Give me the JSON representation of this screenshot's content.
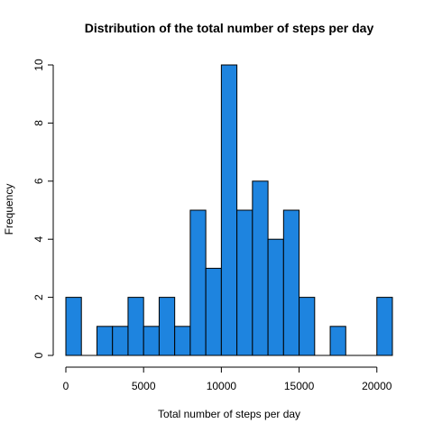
{
  "chart_data": {
    "type": "bar",
    "title": "Distribution of the total number of steps per day",
    "xlabel": "Total number of steps per day",
    "ylabel": "Frequency",
    "bin_width": 1000,
    "bins": [
      {
        "from": 0,
        "to": 1000,
        "count": 2
      },
      {
        "from": 1000,
        "to": 2000,
        "count": 0
      },
      {
        "from": 2000,
        "to": 3000,
        "count": 1
      },
      {
        "from": 3000,
        "to": 4000,
        "count": 1
      },
      {
        "from": 4000,
        "to": 5000,
        "count": 2
      },
      {
        "from": 5000,
        "to": 6000,
        "count": 1
      },
      {
        "from": 6000,
        "to": 7000,
        "count": 2
      },
      {
        "from": 7000,
        "to": 8000,
        "count": 1
      },
      {
        "from": 8000,
        "to": 9000,
        "count": 5
      },
      {
        "from": 9000,
        "to": 10000,
        "count": 3
      },
      {
        "from": 10000,
        "to": 11000,
        "count": 10
      },
      {
        "from": 11000,
        "to": 12000,
        "count": 5
      },
      {
        "from": 12000,
        "to": 13000,
        "count": 6
      },
      {
        "from": 13000,
        "to": 14000,
        "count": 4
      },
      {
        "from": 14000,
        "to": 15000,
        "count": 5
      },
      {
        "from": 15000,
        "to": 16000,
        "count": 2
      },
      {
        "from": 16000,
        "to": 17000,
        "count": 0
      },
      {
        "from": 17000,
        "to": 18000,
        "count": 1
      },
      {
        "from": 18000,
        "to": 19000,
        "count": 0
      },
      {
        "from": 19000,
        "to": 20000,
        "count": 0
      },
      {
        "from": 20000,
        "to": 21000,
        "count": 2
      }
    ],
    "xlim": [
      0,
      21000
    ],
    "ylim": [
      0,
      10
    ],
    "x_ticks": [
      0,
      5000,
      10000,
      15000,
      20000
    ],
    "x_tick_labels": [
      "0",
      "5000",
      "10000",
      "15000",
      "20000"
    ],
    "y_ticks": [
      0,
      2,
      4,
      6,
      8,
      10
    ],
    "y_tick_labels": [
      "0",
      "2",
      "4",
      "6",
      "8",
      "10"
    ],
    "bar_color": "#1e84df",
    "grid": false,
    "legend": "none"
  }
}
